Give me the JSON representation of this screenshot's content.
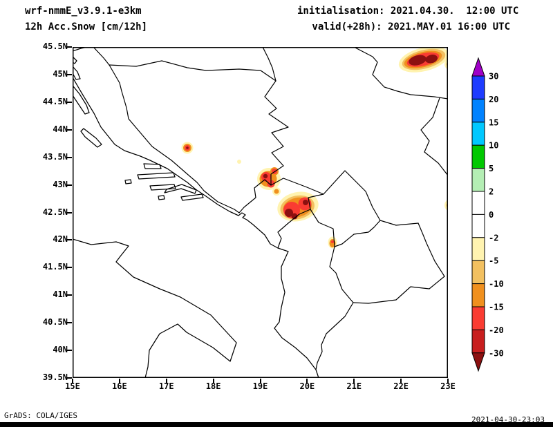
{
  "header": {
    "model": "wrf-nmmE_v3.9.1-e3km",
    "product": "12h Acc.Snow [cm/12h]",
    "init_label": "initialisation: 2021.04.30.  12:00 UTC",
    "valid_label": "valid(+28h): 2021.MAY.01 16:00 UTC"
  },
  "footer": {
    "grads_credit": "GrADS: COLA/IGES",
    "created": "2021-04-30-23:03"
  },
  "chart_data": {
    "type": "heatmap",
    "title": "12h Acc.Snow [cm/12h]",
    "model_run": "wrf-nmmE_v3.9.1-e3km, init 2021.04.30 12:00 UTC, valid(+28h) 2021.MAY.01 16:00 UTC",
    "region": "Adriatic / Western Balkans",
    "x_axis": {
      "label": "longitude",
      "ticks": [
        "15E",
        "16E",
        "17E",
        "18E",
        "19E",
        "20E",
        "21E",
        "22E",
        "23E"
      ],
      "range": [
        15,
        23
      ],
      "grid": false
    },
    "y_axis": {
      "label": "latitude",
      "ticks": [
        "45.5N",
        "45N",
        "44.5N",
        "44N",
        "43.5N",
        "43N",
        "42.5N",
        "42N",
        "41.5N",
        "41N",
        "40.5N",
        "40N",
        "39.5N"
      ],
      "range": [
        39.5,
        45.5
      ],
      "grid": false
    },
    "colorbar": {
      "position": "right",
      "levels": [
        "30",
        "20",
        "15",
        "10",
        "5",
        "2",
        "0",
        "-2",
        "-5",
        "-10",
        "-15",
        "-20",
        "-30"
      ],
      "segment_colors": [
        "#1e3cff",
        "#0082ff",
        "#00c8ff",
        "#00c800",
        "#b4eeb4",
        "#ffffff",
        "#ffffff",
        "#fff3b0",
        "#f2c060",
        "#f0901e",
        "#fa3c32",
        "#c81e1e"
      ],
      "arrow_top_color": "#a000c8",
      "arrow_bottom_color": "#8c1010"
    },
    "snow_maxima": [
      {
        "lon_range": "22.3-23.0E",
        "lat_range": "45.1-45.45N",
        "peak_band": "dark red (-20..-30 band)"
      },
      {
        "lon": 17.45,
        "lat": 43.67,
        "peak_band": "dark red core, red/orange/yellow ring"
      },
      {
        "lon": 18.55,
        "lat": 43.42,
        "peak_band": "pale yellow speck"
      },
      {
        "lon_range": "19.0-19.35E",
        "lat_range": "42.95-43.3N",
        "peak_band": "dark red (-20..-30 band)"
      },
      {
        "lon_range": "19.5-20.1E",
        "lat_range": "42.4-42.75N",
        "peak_band": "dark red (-20..-30 band), largest area"
      },
      {
        "lon": 20.5,
        "lat": 42.0,
        "peak_band": "orange/red small spot"
      },
      {
        "lon": 23.0,
        "lat": 42.6,
        "peak_band": "orange sliver at right map edge"
      }
    ],
    "note": "Shaded accumulated-snow cells drawn over black coastline and country-border outlines; white background, no grid lines."
  }
}
